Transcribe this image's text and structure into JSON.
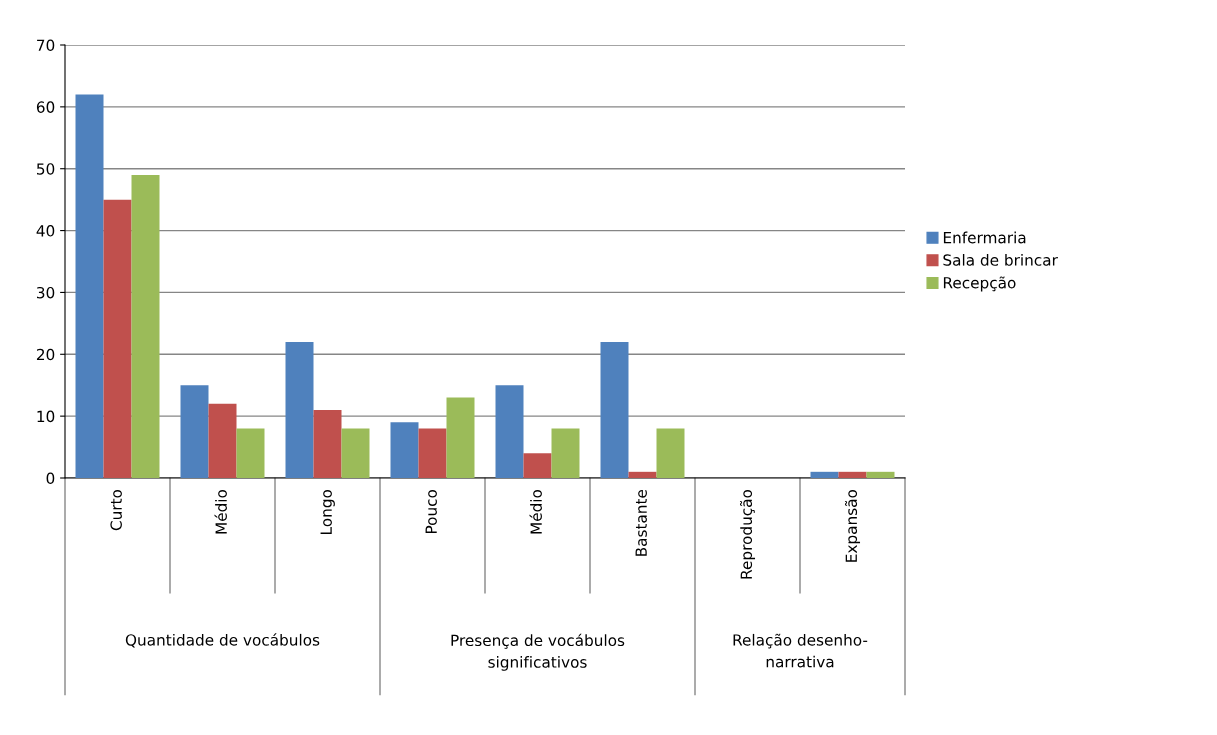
{
  "chart_data": {
    "type": "bar",
    "categories": [
      "Curto",
      "Médio",
      "Longo",
      "Pouco",
      "Médio",
      "Bastante",
      "Reprodução",
      "Expansão"
    ],
    "series": [
      {
        "name": "Enfermaria",
        "color": "#4f81bd",
        "values": [
          62,
          15,
          22,
          9,
          15,
          22,
          0,
          1
        ]
      },
      {
        "name": "Sala de brincar",
        "color": "#c0504d",
        "values": [
          45,
          12,
          11,
          8,
          4,
          1,
          0,
          1
        ]
      },
      {
        "name": "Recepção",
        "color": "#9bbb59",
        "values": [
          49,
          8,
          8,
          13,
          8,
          8,
          0,
          1
        ]
      }
    ],
    "annotations": [
      "Quantidade de vocábulos",
      "Presença de vocábulos\nsignificativos",
      "Relação desenho-\nnarrativa"
    ],
    "ylim": [
      0,
      70
    ],
    "yticks": [
      0,
      10,
      20,
      30,
      40,
      50,
      60,
      70
    ],
    "grid": "y",
    "legend": "right"
  }
}
